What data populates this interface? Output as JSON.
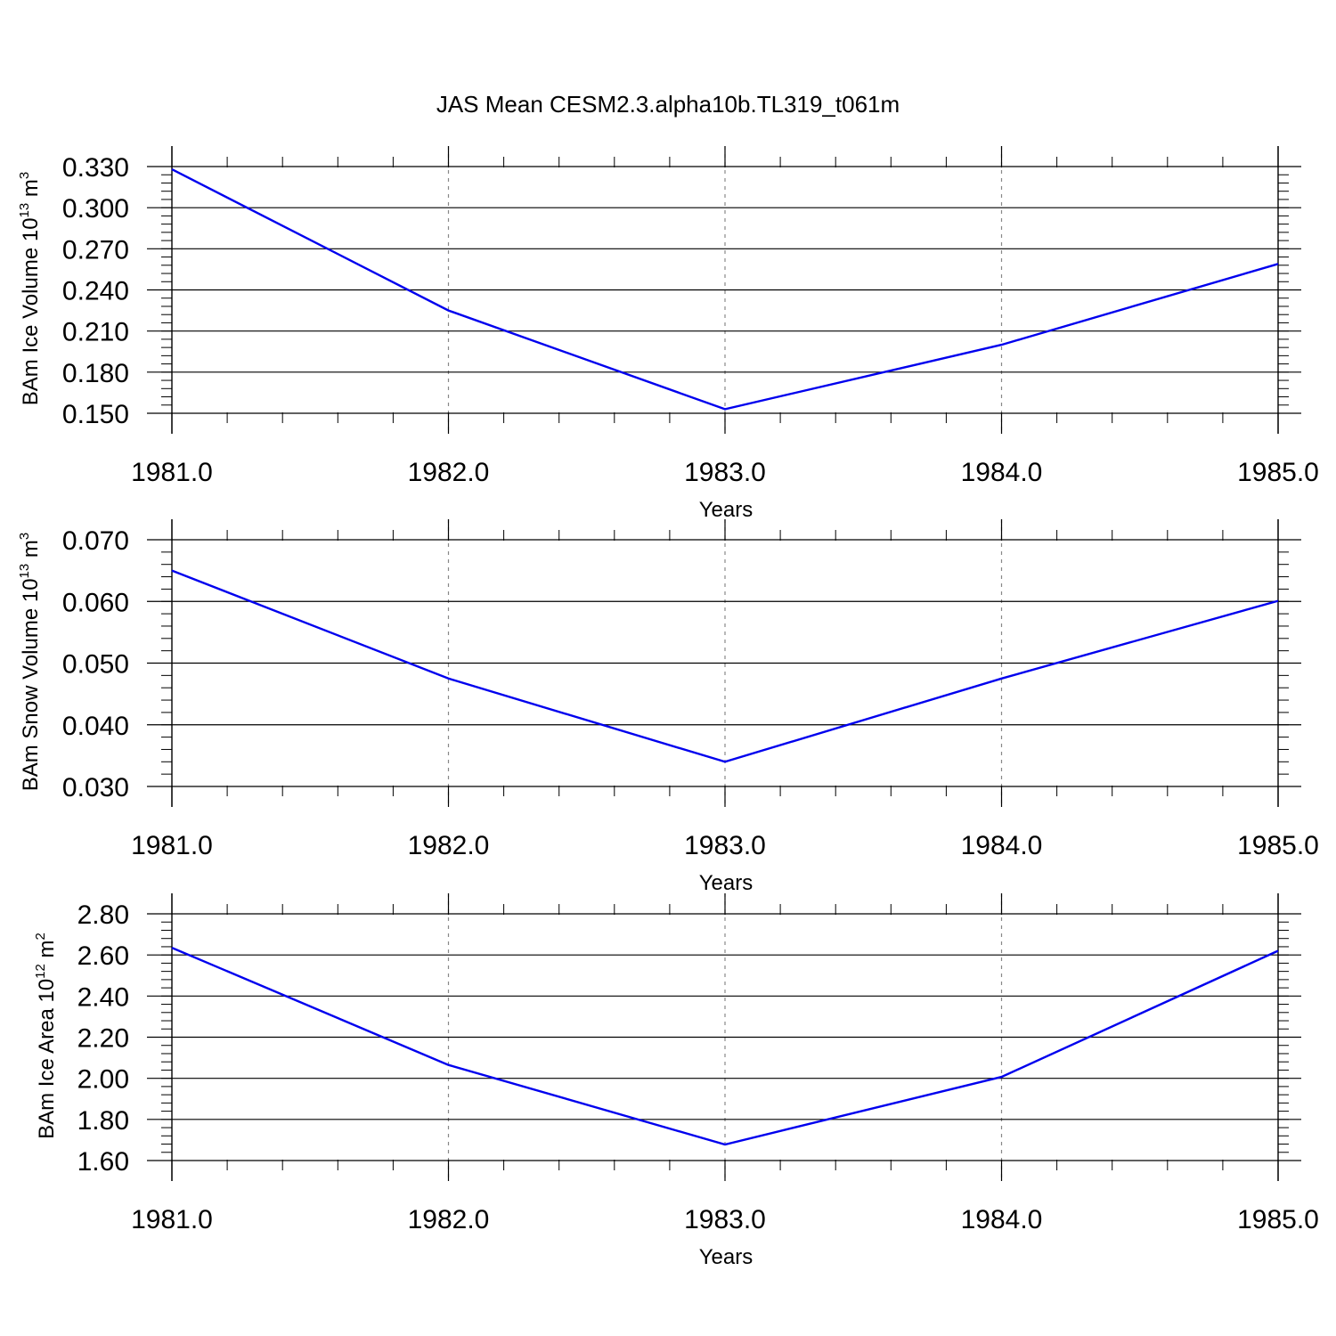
{
  "title": "JAS Mean CESM2.3.alpha10b.TL319_t061m",
  "colors": {
    "line": "#0000ee",
    "axis": "#000000",
    "grid": "#888888"
  },
  "chart_data": [
    {
      "type": "line",
      "x": [
        1981.0,
        1982.0,
        1983.0,
        1984.0,
        1985.0
      ],
      "x_tick_labels": [
        "1981.0",
        "1982.0",
        "1983.0",
        "1984.0",
        "1985.0"
      ],
      "xlabel": "Years",
      "ylabel": {
        "prefix": "BAm Ice Volume 10",
        "sup": "13",
        "unit": " m",
        "unit_sup": "3"
      },
      "y_ticks": [
        0.15,
        0.18,
        0.21,
        0.24,
        0.27,
        0.3,
        0.33
      ],
      "y_tick_labels": [
        "0.150",
        "0.180",
        "0.210",
        "0.240",
        "0.270",
        "0.300",
        "0.330"
      ],
      "y_minor_step": 0.006,
      "ylim": [
        0.15,
        0.33
      ],
      "grid": "vertical dashed at major x ticks",
      "series": [
        {
          "values": [
            0.328,
            0.225,
            0.153,
            0.2,
            0.259
          ]
        }
      ]
    },
    {
      "type": "line",
      "x": [
        1981.0,
        1982.0,
        1983.0,
        1984.0,
        1985.0
      ],
      "x_tick_labels": [
        "1981.0",
        "1982.0",
        "1983.0",
        "1984.0",
        "1985.0"
      ],
      "xlabel": "Years",
      "ylabel": {
        "prefix": "BAm Snow Volume 10",
        "sup": "13",
        "unit": " m",
        "unit_sup": "3"
      },
      "y_ticks": [
        0.03,
        0.04,
        0.05,
        0.06,
        0.07
      ],
      "y_tick_labels": [
        "0.030",
        "0.040",
        "0.050",
        "0.060",
        "0.070"
      ],
      "y_minor_step": 0.002,
      "ylim": [
        0.03,
        0.07
      ],
      "grid": "vertical dashed at major x ticks",
      "series": [
        {
          "values": [
            0.065,
            0.0475,
            0.034,
            0.0475,
            0.0601
          ]
        }
      ]
    },
    {
      "type": "line",
      "x": [
        1981.0,
        1982.0,
        1983.0,
        1984.0,
        1985.0
      ],
      "x_tick_labels": [
        "1981.0",
        "1982.0",
        "1983.0",
        "1984.0",
        "1985.0"
      ],
      "xlabel": "Years",
      "ylabel": {
        "prefix": "BAm Ice Area 10",
        "sup": "12",
        "unit": " m",
        "unit_sup": "2"
      },
      "y_ticks": [
        1.6,
        1.8,
        2.0,
        2.2,
        2.4,
        2.6,
        2.8
      ],
      "y_tick_labels": [
        "1.60",
        "1.80",
        "2.00",
        "2.20",
        "2.40",
        "2.60",
        "2.80"
      ],
      "y_minor_step": 0.04,
      "ylim": [
        1.6,
        2.8
      ],
      "grid": "vertical dashed at major x ticks",
      "series": [
        {
          "values": [
            2.635,
            2.065,
            1.678,
            2.007,
            2.62
          ]
        }
      ]
    }
  ]
}
